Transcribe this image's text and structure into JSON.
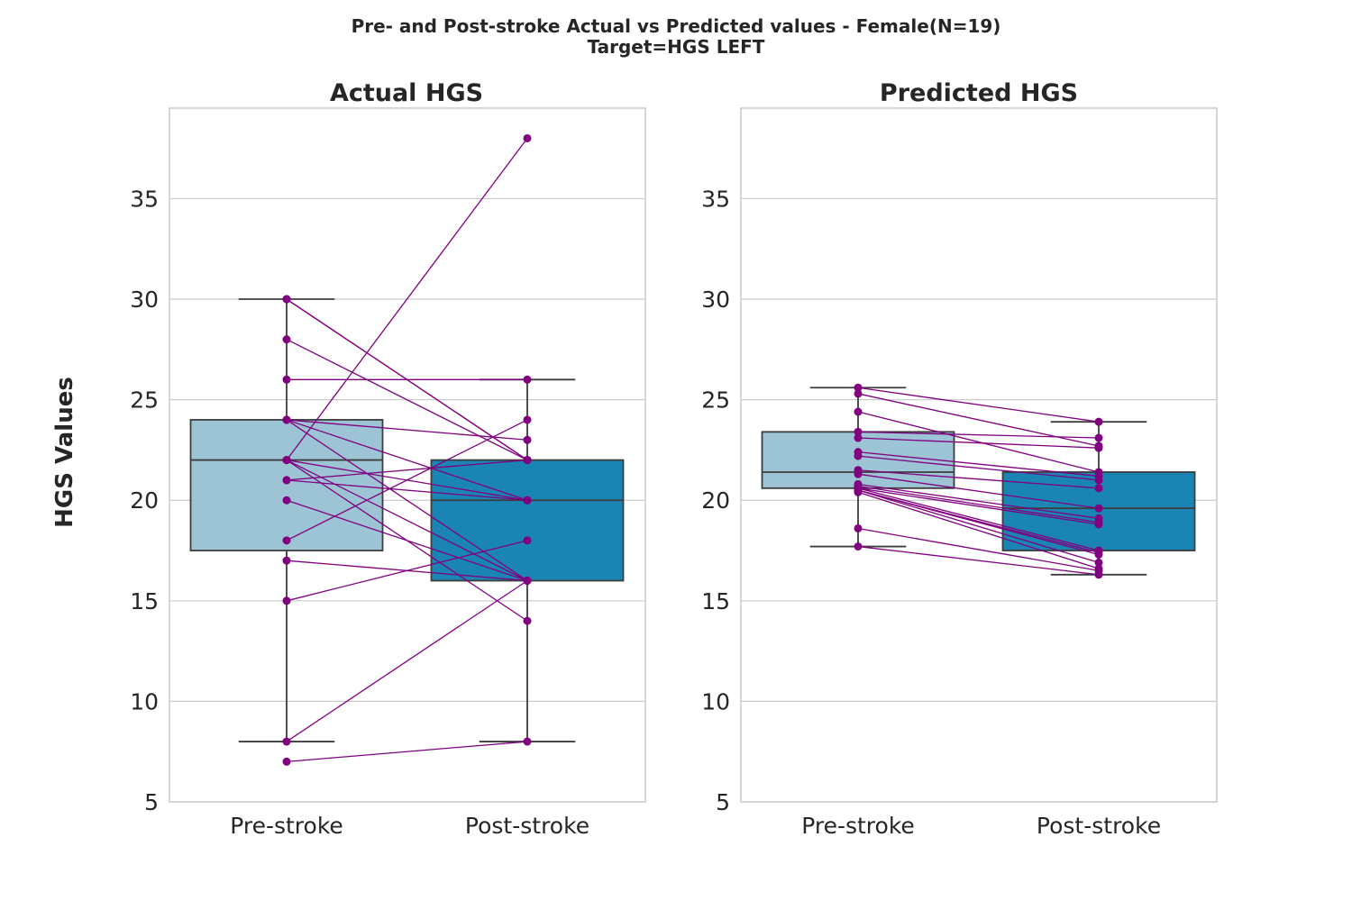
{
  "figure": {
    "title_line1": "Pre- and Post-stroke Actual vs Predicted values - Female(N=19)",
    "title_line2": "Target=HGS LEFT",
    "ylabel": "HGS Values"
  },
  "colors": {
    "pre_box": "#9dc4d4",
    "post_box": "#1a85b5",
    "box_edge": "#3d3d3d",
    "grid": "#cccccc",
    "points_lines": "#800080"
  },
  "chart_data": [
    {
      "type": "box",
      "title": "Actual HGS",
      "categories": [
        "Pre-stroke",
        "Post-stroke"
      ],
      "ylim": [
        5,
        39.5
      ],
      "yticks": [
        5,
        10,
        15,
        20,
        25,
        30,
        35
      ],
      "grid": true,
      "boxes": [
        {
          "name": "Pre-stroke",
          "q1": 17.5,
          "median": 22,
          "q3": 24,
          "whisker_low": 8,
          "whisker_high": 30
        },
        {
          "name": "Post-stroke",
          "q1": 16,
          "median": 20,
          "q3": 22,
          "whisker_low": 8,
          "whisker_high": 26
        }
      ],
      "pairs": [
        [
          30,
          22
        ],
        [
          30,
          22
        ],
        [
          28,
          22
        ],
        [
          26,
          26
        ],
        [
          24,
          23
        ],
        [
          24,
          20
        ],
        [
          24,
          16
        ],
        [
          22,
          38
        ],
        [
          22,
          20
        ],
        [
          22,
          16
        ],
        [
          22,
          14
        ],
        [
          21,
          22
        ],
        [
          21,
          20
        ],
        [
          20,
          16
        ],
        [
          18,
          24
        ],
        [
          17,
          16
        ],
        [
          15,
          18
        ],
        [
          8,
          16
        ],
        [
          7,
          8
        ]
      ]
    },
    {
      "type": "box",
      "title": "Predicted HGS",
      "categories": [
        "Pre-stroke",
        "Post-stroke"
      ],
      "ylim": [
        5,
        39.5
      ],
      "yticks": [
        5,
        10,
        15,
        20,
        25,
        30,
        35
      ],
      "grid": true,
      "boxes": [
        {
          "name": "Pre-stroke",
          "q1": 20.6,
          "median": 21.4,
          "q3": 23.4,
          "whisker_low": 17.7,
          "whisker_high": 25.6
        },
        {
          "name": "Post-stroke",
          "q1": 17.5,
          "median": 19.6,
          "q3": 21.4,
          "whisker_low": 16.3,
          "whisker_high": 23.9
        }
      ],
      "pairs": [
        [
          25.6,
          23.9
        ],
        [
          25.3,
          22.7
        ],
        [
          24.4,
          21.4
        ],
        [
          23.4,
          23.1
        ],
        [
          23.1,
          22.6
        ],
        [
          22.4,
          21.2
        ],
        [
          22.2,
          21.0
        ],
        [
          21.5,
          20.6
        ],
        [
          21.3,
          19.6
        ],
        [
          20.8,
          19.1
        ],
        [
          20.7,
          18.9
        ],
        [
          20.6,
          18.8
        ],
        [
          20.6,
          17.5
        ],
        [
          20.5,
          17.4
        ],
        [
          20.5,
          17.3
        ],
        [
          20.5,
          16.9
        ],
        [
          20.4,
          16.6
        ],
        [
          18.6,
          16.5
        ],
        [
          17.7,
          16.3
        ]
      ]
    }
  ]
}
